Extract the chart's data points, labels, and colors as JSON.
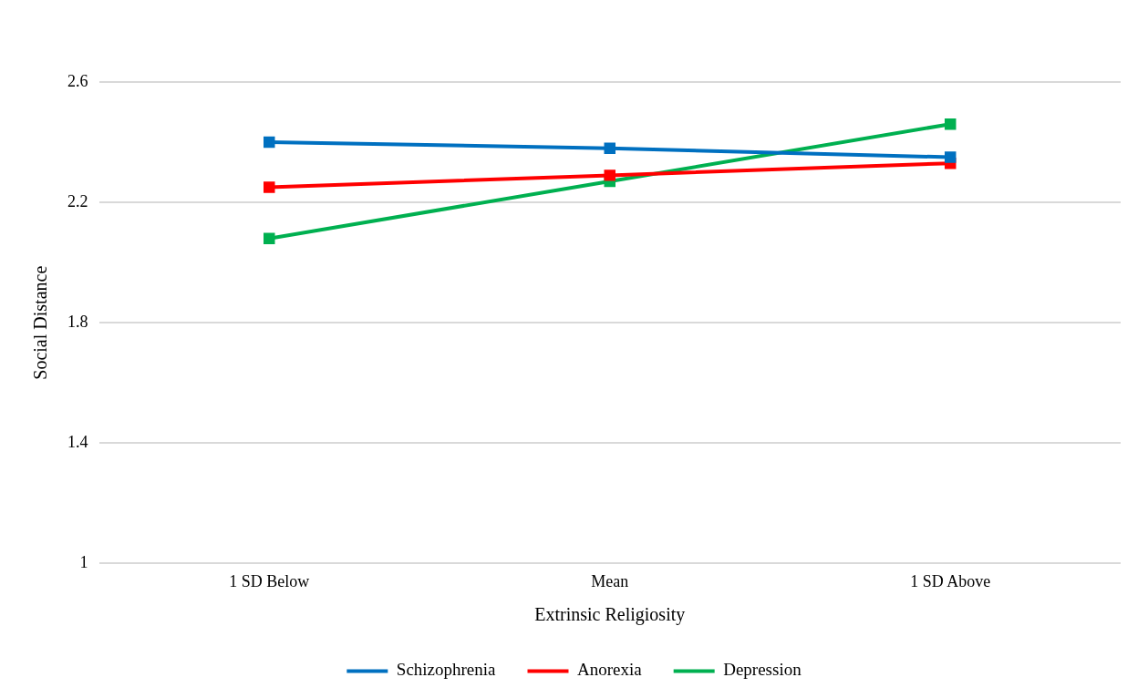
{
  "chart_data": {
    "type": "line",
    "xlabel": "Extrinsic Religiosity",
    "ylabel": "Social Distance",
    "categories": [
      "1 SD Below",
      "Mean",
      "1 SD Above"
    ],
    "series": [
      {
        "name": "Schizophrenia",
        "color": "#0070c0",
        "values": [
          2.4,
          2.38,
          2.35
        ]
      },
      {
        "name": "Anorexia",
        "color": "#ff0000",
        "values": [
          2.25,
          2.29,
          2.33
        ]
      },
      {
        "name": "Depression",
        "color": "#00b050",
        "values": [
          2.08,
          2.27,
          2.46
        ]
      }
    ],
    "ylim": [
      1,
      2.6
    ],
    "yticks": [
      1,
      1.4,
      1.8,
      2.2,
      2.6
    ],
    "grid": "y",
    "legend": "bottom",
    "marker": "square",
    "line_style": "solid"
  }
}
